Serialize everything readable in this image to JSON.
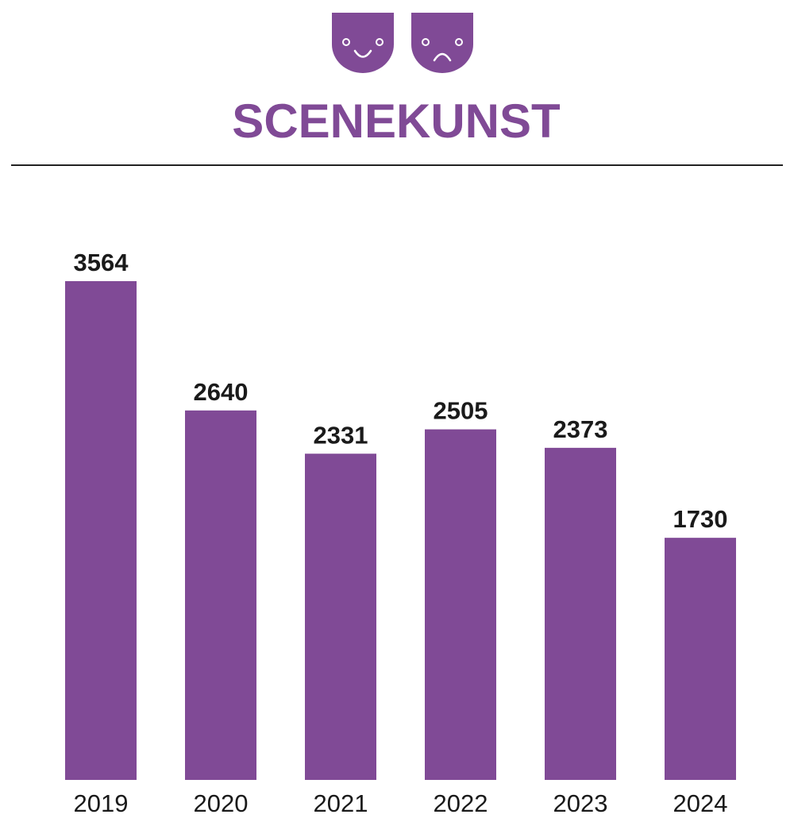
{
  "colors": {
    "accent": "#804a96",
    "text": "#1a1a1a",
    "rule": "#222222",
    "background": "#ffffff"
  },
  "icons": [
    "smiling-mask-icon",
    "frowning-mask-icon"
  ],
  "chart_data": {
    "type": "bar",
    "title": "SCENEKUNST",
    "categories": [
      "2019",
      "2020",
      "2021",
      "2022",
      "2023",
      "2024"
    ],
    "values": [
      3564,
      2640,
      2331,
      2505,
      2373,
      1730
    ],
    "value_labels": [
      "3564",
      "2640",
      "2331",
      "2505",
      "2373",
      "1730"
    ],
    "xlabel": "",
    "ylabel": "",
    "ylim": [
      0,
      3564
    ],
    "grid": false,
    "legend": "none",
    "y_axis_visible": false
  }
}
